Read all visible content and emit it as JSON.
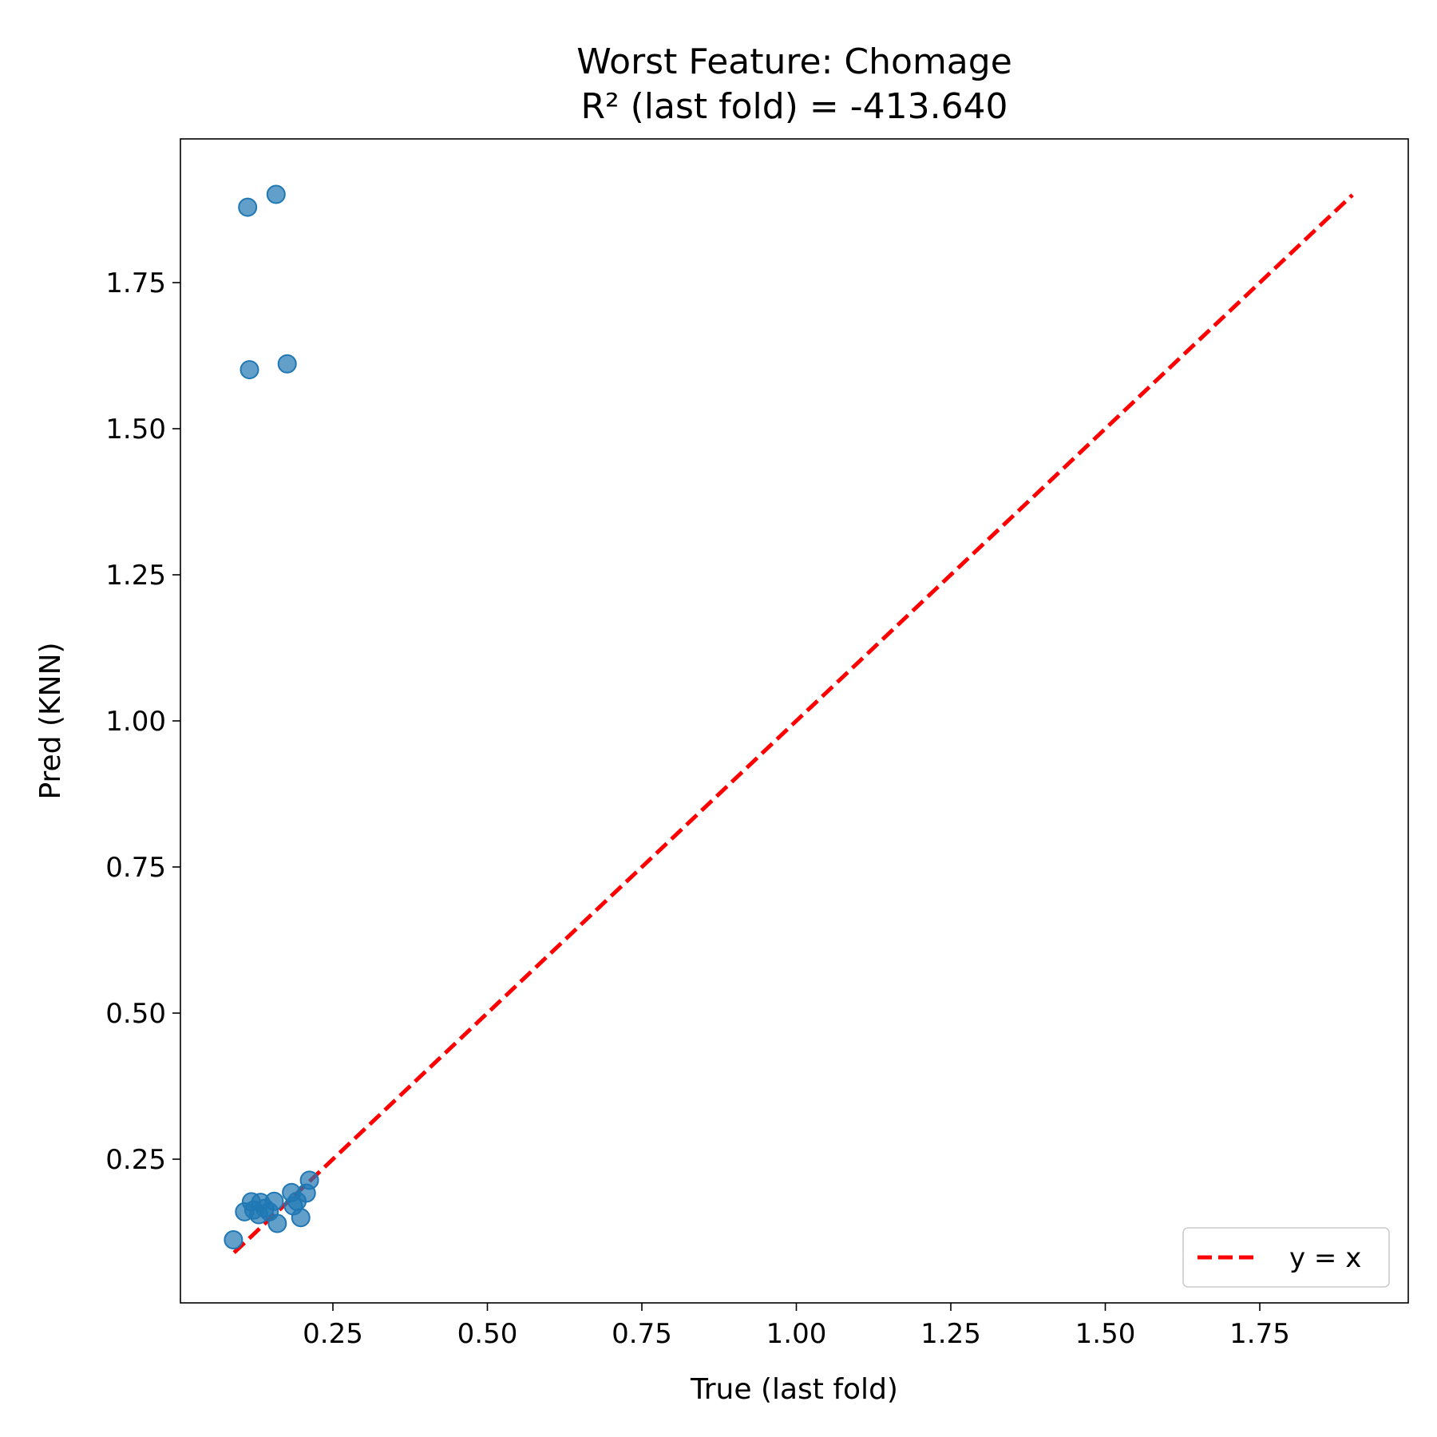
{
  "chart_data": {
    "type": "scatter",
    "title_line1": "Worst Feature: Chomage",
    "title_line2": "R² (last fold) = -413.640",
    "xlabel": "True (last fold)",
    "ylabel": "Pred (KNN)",
    "xlim": [
      0.0,
      2.0
    ],
    "ylim": [
      0.0,
      2.0
    ],
    "xticks": [
      0.25,
      0.5,
      0.75,
      1.0,
      1.25,
      1.5,
      1.75
    ],
    "xtick_labels": [
      "0.25",
      "0.50",
      "0.75",
      "1.00",
      "1.25",
      "1.50",
      "1.75"
    ],
    "yticks": [
      0.25,
      0.5,
      0.75,
      1.0,
      1.25,
      1.5,
      1.75
    ],
    "ytick_labels": [
      "0.25",
      "0.50",
      "0.75",
      "1.00",
      "1.25",
      "1.50",
      "1.75"
    ],
    "point_color": "#1f77b4",
    "line_color": "#ff0000",
    "legend": {
      "label": "y = x",
      "placement": "lower-right"
    },
    "reference_line": {
      "x": [
        0.09,
        1.9
      ],
      "y": [
        0.09,
        1.9
      ]
    },
    "points": [
      {
        "x": 0.112,
        "y": 1.879
      },
      {
        "x": 0.158,
        "y": 1.901
      },
      {
        "x": 0.115,
        "y": 1.601
      },
      {
        "x": 0.176,
        "y": 1.611
      },
      {
        "x": 0.089,
        "y": 0.112
      },
      {
        "x": 0.107,
        "y": 0.16
      },
      {
        "x": 0.118,
        "y": 0.177
      },
      {
        "x": 0.122,
        "y": 0.163
      },
      {
        "x": 0.13,
        "y": 0.155
      },
      {
        "x": 0.133,
        "y": 0.176
      },
      {
        "x": 0.14,
        "y": 0.166
      },
      {
        "x": 0.147,
        "y": 0.16
      },
      {
        "x": 0.155,
        "y": 0.178
      },
      {
        "x": 0.16,
        "y": 0.14
      },
      {
        "x": 0.183,
        "y": 0.193
      },
      {
        "x": 0.186,
        "y": 0.17
      },
      {
        "x": 0.192,
        "y": 0.178
      },
      {
        "x": 0.198,
        "y": 0.15
      },
      {
        "x": 0.207,
        "y": 0.192
      },
      {
        "x": 0.212,
        "y": 0.214
      }
    ]
  }
}
